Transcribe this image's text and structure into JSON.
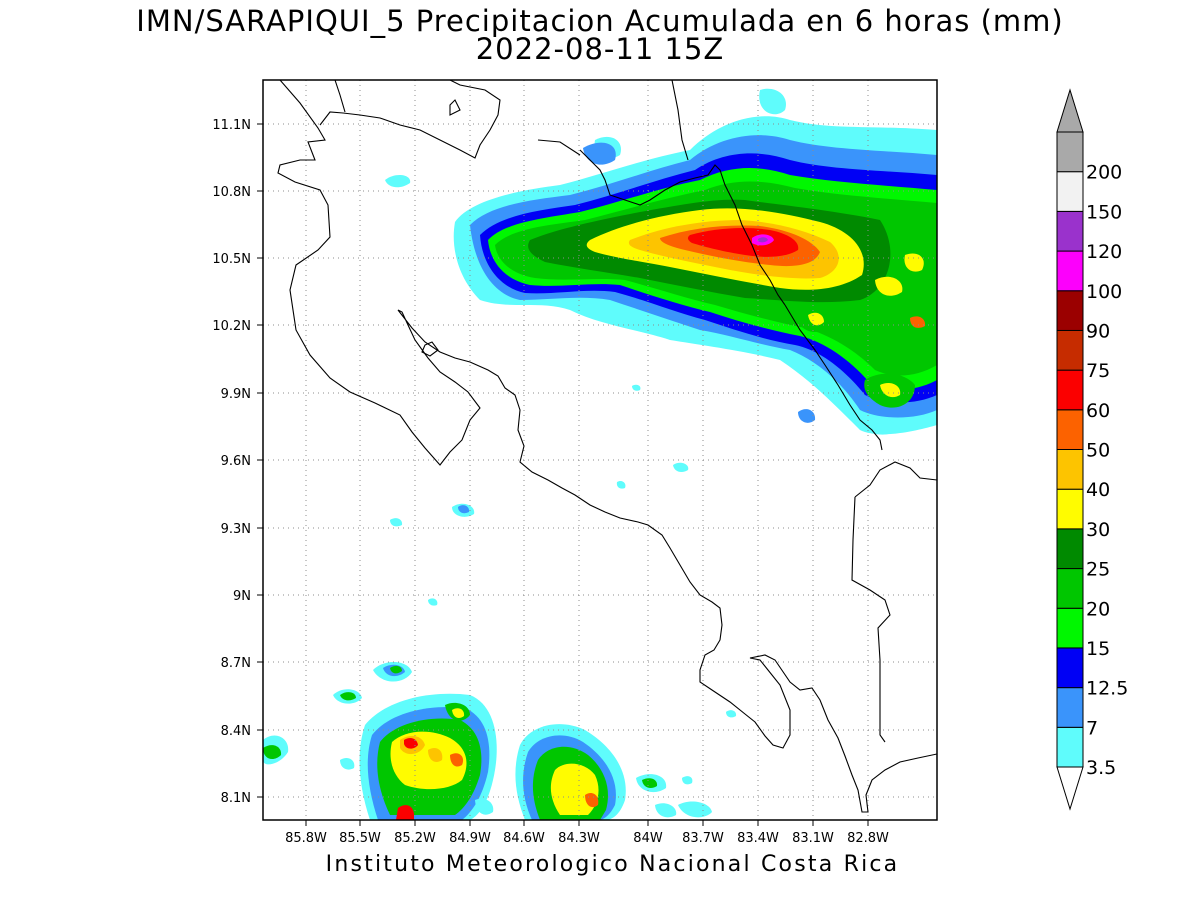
{
  "title": {
    "line1": "IMN/SARAPIQUI_5 Precipitacion Acumulada en 6 horas (mm)",
    "line2": "2022-08-11 15Z"
  },
  "footer": "Instituto Meteorologico Nacional Costa Rica",
  "axes": {
    "lon_labels": [
      "85.8W",
      "85.5W",
      "85.2W",
      "84.9W",
      "84.6W",
      "84.3W",
      "84W",
      "83.7W",
      "83.4W",
      "83.1W",
      "82.8W"
    ],
    "lat_labels": [
      "11.1N",
      "10.8N",
      "10.5N",
      "10.2N",
      "9.9N",
      "9.6N",
      "9.3N",
      "9N",
      "8.7N",
      "8.4N",
      "8.1N"
    ],
    "grid": "dotted"
  },
  "colorbar": {
    "levels": [
      "3.5",
      "7",
      "12.5",
      "15",
      "20",
      "25",
      "30",
      "40",
      "50",
      "60",
      "75",
      "90",
      "100",
      "120",
      "150",
      "200"
    ],
    "colors": [
      "#5ffcfc",
      "#3a94fb",
      "#0000f5",
      "#00f700",
      "#00c600",
      "#008a00",
      "#fffc00",
      "#fdc400",
      "#fc6200",
      "#fb0000",
      "#c62c00",
      "#9b0000",
      "#fc00fc",
      "#9a32cc",
      "#f2f2f2",
      "#a9a9a9"
    ],
    "open_ends": [
      "under: white",
      "over: gray"
    ]
  }
}
